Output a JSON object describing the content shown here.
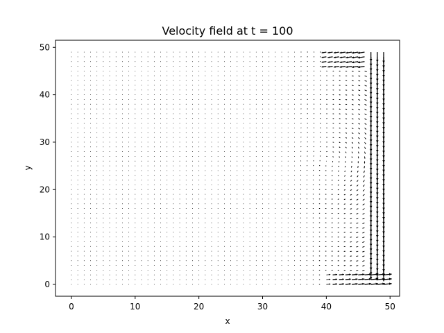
{
  "chart_data": {
    "type": "quiver",
    "title": "Velocity field at t = 100",
    "xlabel": "x",
    "ylabel": "y",
    "xlim": [
      -2.5,
      51.5
    ],
    "ylim": [
      -2.5,
      51.5
    ],
    "xticks": [
      0,
      10,
      20,
      30,
      40,
      50
    ],
    "yticks": [
      0,
      10,
      20,
      30,
      40,
      50
    ],
    "grid": false,
    "arrow_color": "#000000",
    "field": {
      "description_of_flow": "lid-driven-like circulation: strong downward jet near x=49, leftward flow along top near y=48, rightward flow along bottom near y=1, near-zero velocity for x<20",
      "x_range": [
        0,
        49
      ],
      "y_range": [
        0,
        49
      ],
      "spacing": 1,
      "center_of_rotation": [
        40,
        26
      ]
    }
  }
}
